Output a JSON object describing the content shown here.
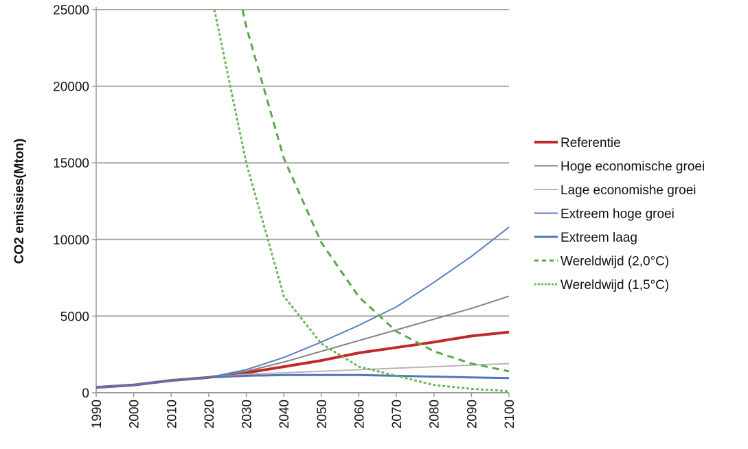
{
  "chart_data": {
    "type": "line",
    "title": "",
    "xlabel": "",
    "ylabel": "CO2 emissies(Mton)",
    "xlim": [
      1990,
      2100
    ],
    "ylim": [
      0,
      25000
    ],
    "x_ticks": [
      "1990",
      "2000",
      "2010",
      "2020",
      "2030",
      "2040",
      "2050",
      "2060",
      "2070",
      "2080",
      "2090",
      "2100"
    ],
    "y_ticks": [
      "0",
      "5000",
      "10000",
      "15000",
      "20000",
      "25000"
    ],
    "grid": "horizontal",
    "legend_position": "right",
    "series": [
      {
        "name": "Referentie",
        "color": "#c0282a",
        "dash": "solid",
        "width": 4,
        "x": [
          1990,
          2000,
          2010,
          2020,
          2030,
          2040,
          2050,
          2060,
          2070,
          2080,
          2090,
          2100
        ],
        "y": [
          350,
          500,
          800,
          1000,
          1300,
          1700,
          2100,
          2600,
          2950,
          3300,
          3700,
          3950
        ]
      },
      {
        "name": "Hoge economische groei",
        "color": "#8a7f80",
        "dash": "solid",
        "width": 2,
        "x": [
          1990,
          2000,
          2010,
          2020,
          2030,
          2040,
          2050,
          2060,
          2070,
          2080,
          2090,
          2100
        ],
        "y": [
          350,
          500,
          800,
          1000,
          1400,
          2000,
          2700,
          3400,
          4100,
          4800,
          5500,
          6300
        ]
      },
      {
        "name": "Lage economishe groei",
        "color": "#b9b3b6",
        "dash": "solid",
        "width": 2,
        "x": [
          1990,
          2000,
          2010,
          2020,
          2030,
          2040,
          2050,
          2060,
          2070,
          2080,
          2090,
          2100
        ],
        "y": [
          350,
          500,
          800,
          1000,
          1200,
          1300,
          1400,
          1500,
          1600,
          1700,
          1800,
          1900
        ]
      },
      {
        "name": "Extreem hoge groei",
        "color": "#5b7fbf",
        "dash": "solid",
        "width": 2,
        "x": [
          1990,
          2000,
          2010,
          2020,
          2030,
          2040,
          2050,
          2060,
          2070,
          2080,
          2090,
          2100
        ],
        "y": [
          350,
          500,
          800,
          1000,
          1500,
          2300,
          3300,
          4400,
          5600,
          7200,
          8900,
          10800
        ]
      },
      {
        "name": "Extreem laag",
        "color": "#4f77b8",
        "dash": "solid",
        "width": 3,
        "x": [
          1990,
          2000,
          2010,
          2020,
          2030,
          2040,
          2050,
          2060,
          2070,
          2080,
          2090,
          2100
        ],
        "y": [
          350,
          500,
          800,
          1000,
          1100,
          1150,
          1150,
          1150,
          1100,
          1050,
          1000,
          950
        ]
      },
      {
        "name": "Wereldwijd (2,0°C)",
        "color": "#5aa84a",
        "dash": "10,7",
        "width": 3,
        "x": [
          2029,
          2030,
          2040,
          2050,
          2060,
          2070,
          2080,
          2090,
          2100
        ],
        "y": [
          25000,
          23900,
          15300,
          9800,
          6250,
          4000,
          2700,
          1900,
          1400
        ]
      },
      {
        "name": "Wereldwijd (1,5°C)",
        "color": "#6ab85a",
        "dash": "4,3",
        "width": 3,
        "x": [
          2021.5,
          2030,
          2040,
          2050,
          2060,
          2070,
          2080,
          2090,
          2100
        ],
        "y": [
          25000,
          15000,
          6300,
          3200,
          1700,
          1100,
          500,
          250,
          100
        ]
      }
    ]
  }
}
